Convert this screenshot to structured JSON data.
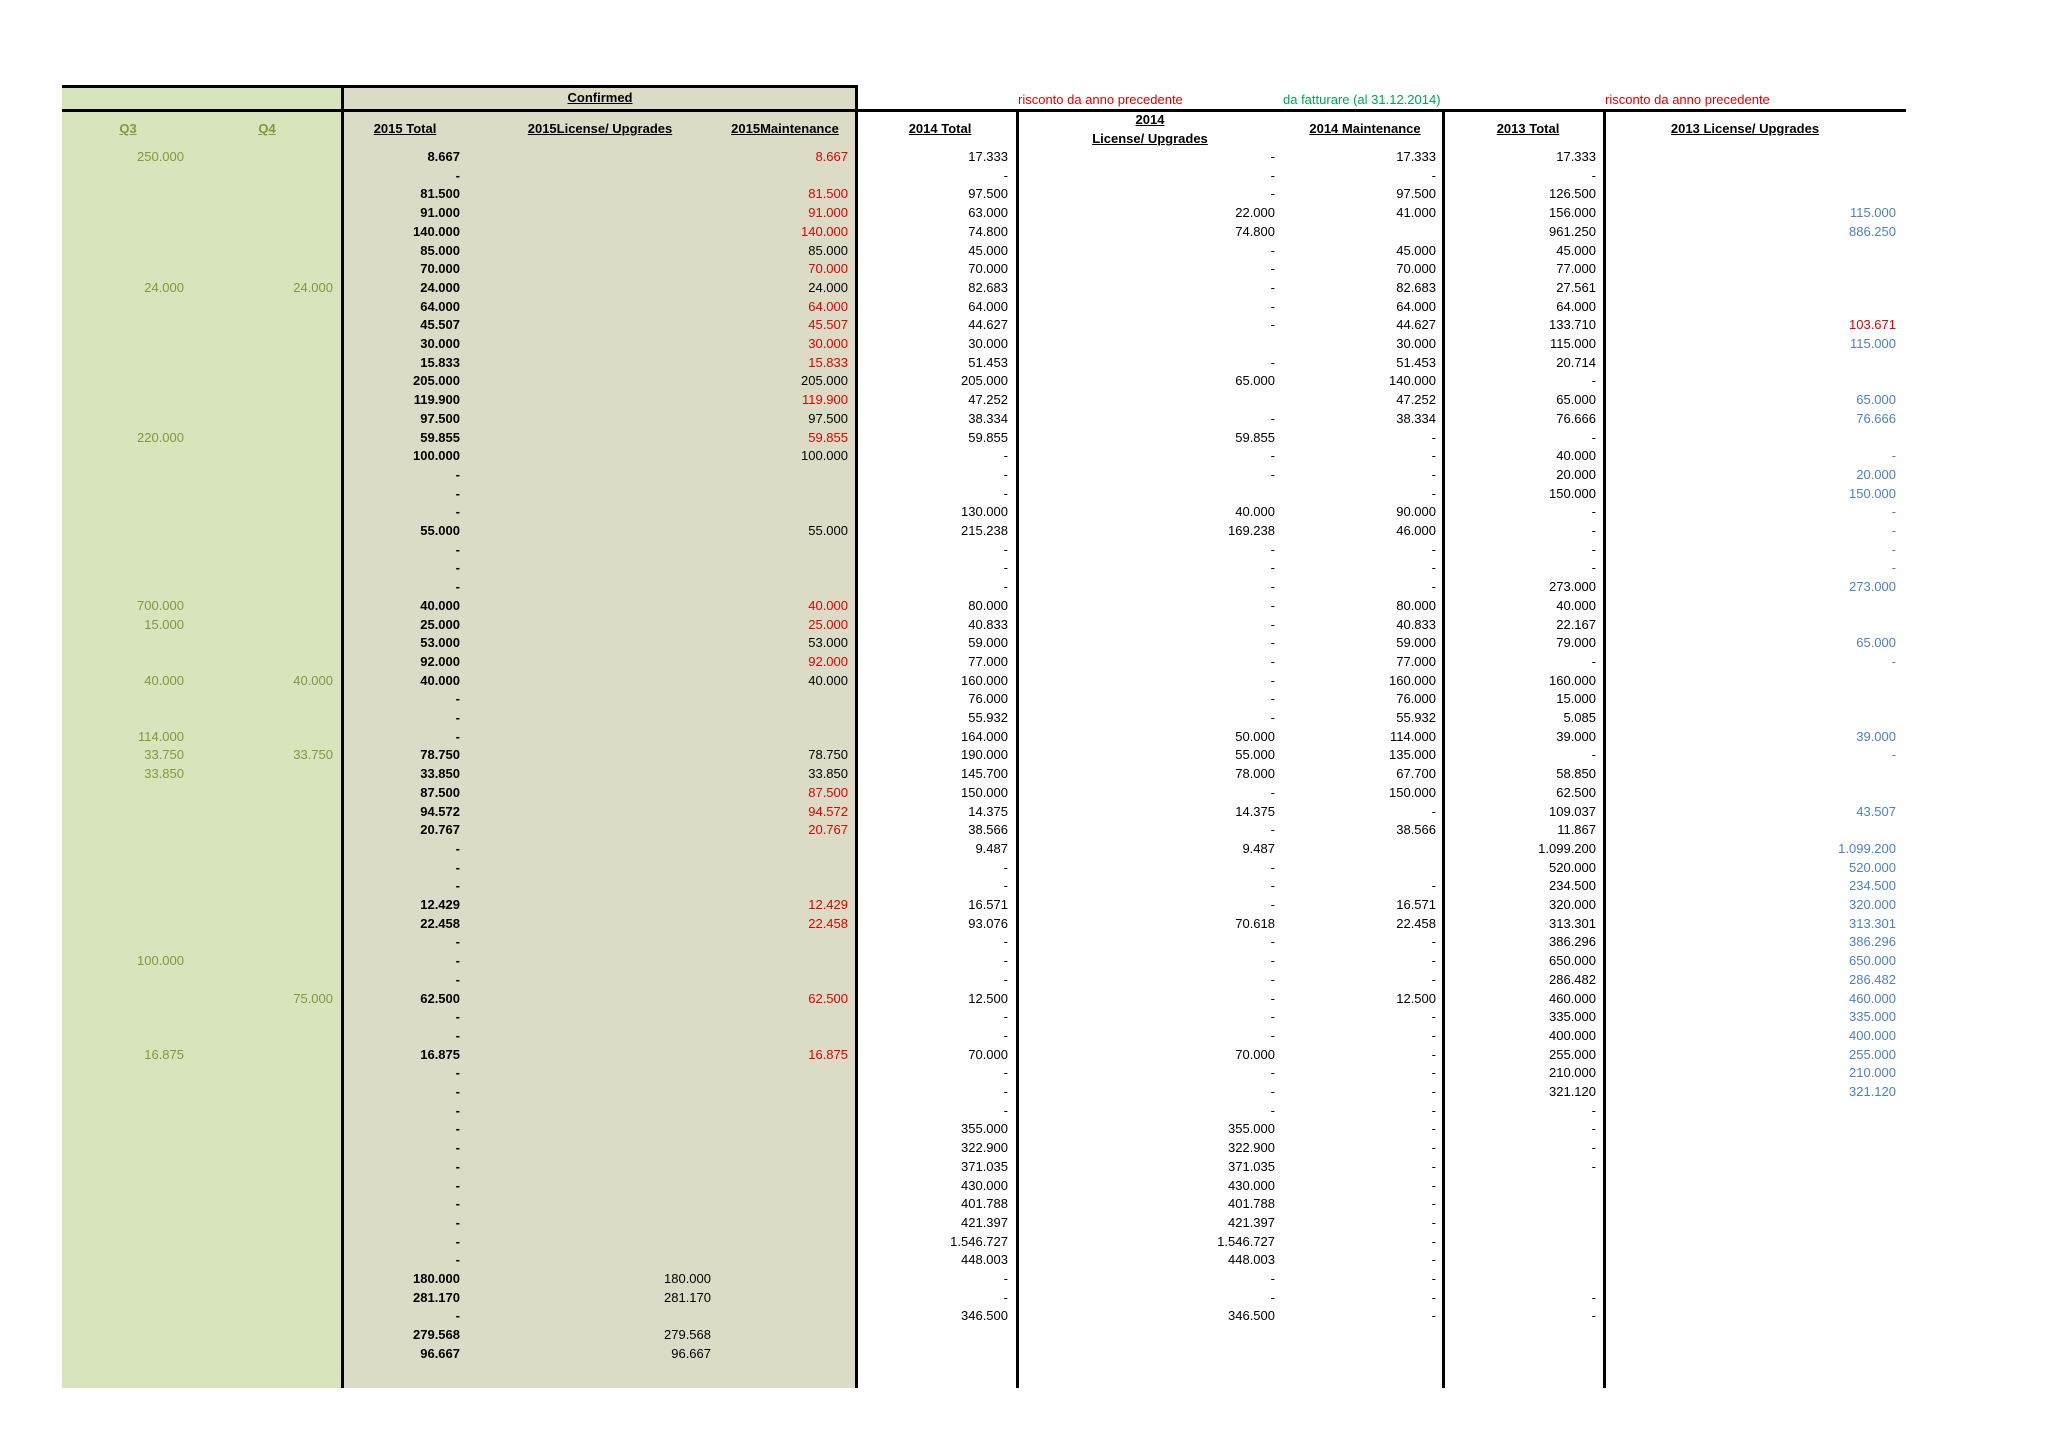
{
  "header": {
    "confirmed": "Confirmed",
    "note_risconto_1": "risconto da anno precedente",
    "note_fatturare": "da fatturare (al 31.12.2014)",
    "note_risconto_2": "risconto da anno precedente",
    "columns": {
      "q3": "Q3",
      "q4": "Q4",
      "t2015": "2015 Total",
      "l2015": "2015License/ Upgrades",
      "m2015": "2015Maintenance",
      "t2014": "2014 Total",
      "l2014_line1": "2014",
      "l2014_line2": "License/ Upgrades",
      "m2014": "2014 Maintenance",
      "t2013": "2013 Total",
      "l2013": "2013 License/ Upgrades"
    }
  },
  "colors": {
    "green_bg": "#d8e4bc",
    "grey_bg": "#dcdcc6",
    "q_text": "#7f9a3a",
    "red": "#e00000",
    "blue": "#4f81bd",
    "green_note": "#00a651"
  },
  "rows": [
    {
      "q3": "250.000",
      "t2015": "8.667",
      "m2015": "8.667",
      "m2015c": "red",
      "t2014": "17.333",
      "l2014": "-",
      "m2014": "17.333",
      "t2013": "17.333"
    },
    {
      "t2015": "-",
      "t2014": "-",
      "l2014": "-",
      "m2014": "-",
      "t2013": "-"
    },
    {
      "t2015": "81.500",
      "m2015": "81.500",
      "m2015c": "red",
      "t2014": "97.500",
      "l2014": "-",
      "m2014": "97.500",
      "t2013": "126.500"
    },
    {
      "t2015": "91.000",
      "m2015": "91.000",
      "m2015c": "red",
      "t2014": "63.000",
      "l2014": "22.000",
      "m2014": "41.000",
      "t2013": "156.000",
      "l2013": "115.000",
      "l2013c": "blue"
    },
    {
      "t2015": "140.000",
      "m2015": "140.000",
      "m2015c": "red",
      "t2014": "74.800",
      "l2014": "74.800",
      "t2013": "961.250",
      "l2013": "886.250",
      "l2013c": "blue"
    },
    {
      "t2015": "85.000",
      "m2015": "85.000",
      "t2014": "45.000",
      "l2014": "-",
      "m2014": "45.000",
      "t2013": "45.000"
    },
    {
      "t2015": "70.000",
      "m2015": "70.000",
      "m2015c": "red",
      "t2014": "70.000",
      "l2014": "-",
      "m2014": "70.000",
      "t2013": "77.000"
    },
    {
      "q3": "24.000",
      "q4": "24.000",
      "t2015": "24.000",
      "m2015": "24.000",
      "t2014": "82.683",
      "l2014": "-",
      "m2014": "82.683",
      "t2013": "27.561"
    },
    {
      "t2015": "64.000",
      "m2015": "64.000",
      "m2015c": "red",
      "t2014": "64.000",
      "l2014": "-",
      "m2014": "64.000",
      "t2013": "64.000"
    },
    {
      "t2015": "45.507",
      "m2015": "45.507",
      "m2015c": "red",
      "t2014": "44.627",
      "l2014": "-",
      "m2014": "44.627",
      "t2013": "133.710",
      "l2013": "103.671",
      "l2013c": "red"
    },
    {
      "t2015": "30.000",
      "m2015": "30.000",
      "m2015c": "red",
      "t2014": "30.000",
      "m2014": "30.000",
      "t2013": "115.000",
      "l2013": "115.000",
      "l2013c": "blue"
    },
    {
      "t2015": "15.833",
      "m2015": "15.833",
      "m2015c": "red",
      "t2014": "51.453",
      "l2014": "-",
      "m2014": "51.453",
      "t2013": "20.714"
    },
    {
      "t2015": "205.000",
      "m2015": "205.000",
      "t2014": "205.000",
      "l2014": "65.000",
      "m2014": "140.000",
      "t2013": "-"
    },
    {
      "t2015": "119.900",
      "m2015": "119.900",
      "m2015c": "red",
      "t2014": "47.252",
      "m2014": "47.252",
      "t2013": "65.000",
      "l2013": "65.000",
      "l2013c": "blue"
    },
    {
      "t2015": "97.500",
      "m2015": "97.500",
      "t2014": "38.334",
      "l2014": "-",
      "m2014": "38.334",
      "t2013": "76.666",
      "l2013": "76.666",
      "l2013c": "blue"
    },
    {
      "q3": "220.000",
      "t2015": "59.855",
      "m2015": "59.855",
      "m2015c": "red",
      "t2014": "59.855",
      "l2014": "59.855",
      "m2014": "-",
      "t2013": "-"
    },
    {
      "t2015": "100.000",
      "m2015": "100.000",
      "t2014": "-",
      "l2014": "-",
      "m2014": "-",
      "t2013": "40.000",
      "l2013": "-",
      "l2013c": "blue"
    },
    {
      "t2015": "-",
      "t2014": "-",
      "l2014": "-",
      "m2014": "-",
      "t2013": "20.000",
      "l2013": "20.000",
      "l2013c": "blue"
    },
    {
      "t2015": "-",
      "t2014": "-",
      "m2014": "-",
      "t2013": "150.000",
      "l2013": "150.000",
      "l2013c": "blue"
    },
    {
      "t2015": "-",
      "t2014": "130.000",
      "l2014": "40.000",
      "m2014": "90.000",
      "t2013": "-",
      "l2013": "-",
      "l2013c": "blue"
    },
    {
      "t2015": "55.000",
      "m2015": "55.000",
      "t2014": "215.238",
      "l2014": "169.238",
      "m2014": "46.000",
      "t2013": "-",
      "l2013": "-",
      "l2013c": "blue"
    },
    {
      "t2015": "-",
      "t2014": "-",
      "l2014": "-",
      "m2014": "-",
      "t2013": "-",
      "l2013": "-",
      "l2013c": "blue"
    },
    {
      "t2015": "-",
      "t2014": "-",
      "l2014": "-",
      "m2014": "-",
      "t2013": "-",
      "l2013": "-",
      "l2013c": "blue"
    },
    {
      "t2015": "-",
      "t2014": "-",
      "l2014": "-",
      "m2014": "-",
      "t2013": "273.000",
      "l2013": "273.000",
      "l2013c": "blue"
    },
    {
      "q3": "700.000",
      "t2015": "40.000",
      "m2015": "40.000",
      "m2015c": "red",
      "t2014": "80.000",
      "l2014": "-",
      "m2014": "80.000",
      "t2013": "40.000"
    },
    {
      "q3": "15.000",
      "t2015": "25.000",
      "m2015": "25.000",
      "m2015c": "red",
      "t2014": "40.833",
      "l2014": "-",
      "m2014": "40.833",
      "t2013": "22.167"
    },
    {
      "t2015": "53.000",
      "m2015": "53.000",
      "t2014": "59.000",
      "l2014": "-",
      "m2014": "59.000",
      "t2013": "79.000",
      "l2013": "65.000",
      "l2013c": "blue"
    },
    {
      "t2015": "92.000",
      "m2015": "92.000",
      "m2015c": "red",
      "t2014": "77.000",
      "l2014": "-",
      "m2014": "77.000",
      "t2013": "-",
      "l2013": "-",
      "l2013c": "blue"
    },
    {
      "q3": "40.000",
      "q4": "40.000",
      "t2015": "40.000",
      "m2015": "40.000",
      "t2014": "160.000",
      "l2014": "-",
      "m2014": "160.000",
      "t2013": "160.000"
    },
    {
      "t2015": "-",
      "t2014": "76.000",
      "l2014": "-",
      "m2014": "76.000",
      "t2013": "15.000"
    },
    {
      "t2015": "-",
      "t2014": "55.932",
      "l2014": "-",
      "m2014": "55.932",
      "t2013": "5.085"
    },
    {
      "q3": "114.000",
      "t2015": "-",
      "t2014": "164.000",
      "l2014": "50.000",
      "m2014": "114.000",
      "t2013": "39.000",
      "l2013": "39.000",
      "l2013c": "blue"
    },
    {
      "q3": "33.750",
      "q4": "33.750",
      "t2015": "78.750",
      "m2015": "78.750",
      "t2014": "190.000",
      "l2014": "55.000",
      "m2014": "135.000",
      "t2013": "-",
      "l2013": "-",
      "l2013c": "blue"
    },
    {
      "q3": "33.850",
      "t2015": "33.850",
      "m2015": "33.850",
      "t2014": "145.700",
      "l2014": "78.000",
      "m2014": "67.700",
      "t2013": "58.850"
    },
    {
      "t2015": "87.500",
      "m2015": "87.500",
      "m2015c": "red",
      "t2014": "150.000",
      "l2014": "-",
      "m2014": "150.000",
      "t2013": "62.500"
    },
    {
      "t2015": "94.572",
      "m2015": "94.572",
      "m2015c": "red",
      "t2014": "14.375",
      "l2014": "14.375",
      "m2014": "-",
      "t2013": "109.037",
      "l2013": "43.507",
      "l2013c": "blue"
    },
    {
      "t2015": "20.767",
      "m2015": "20.767",
      "m2015c": "red",
      "t2014": "38.566",
      "l2014": "-",
      "m2014": "38.566",
      "t2013": "11.867"
    },
    {
      "t2015": "-",
      "t2014": "9.487",
      "l2014": "9.487",
      "t2013": "1.099.200",
      "l2013": "1.099.200",
      "l2013c": "blue"
    },
    {
      "t2015": "-",
      "t2014": "-",
      "l2014": "-",
      "t2013": "520.000",
      "l2013": "520.000",
      "l2013c": "blue"
    },
    {
      "t2015": "-",
      "t2014": "-",
      "l2014": "-",
      "m2014": "-",
      "t2013": "234.500",
      "l2013": "234.500",
      "l2013c": "blue"
    },
    {
      "t2015": "12.429",
      "m2015": "12.429",
      "m2015c": "red",
      "t2014": "16.571",
      "l2014": "-",
      "m2014": "16.571",
      "t2013": "320.000",
      "l2013": "320.000",
      "l2013c": "blue"
    },
    {
      "t2015": "22.458",
      "m2015": "22.458",
      "m2015c": "red",
      "t2014": "93.076",
      "l2014": "70.618",
      "m2014": "22.458",
      "t2013": "313.301",
      "l2013": "313.301",
      "l2013c": "blue"
    },
    {
      "t2015": "-",
      "t2014": "-",
      "l2014": "-",
      "m2014": "-",
      "t2013": "386.296",
      "l2013": "386.296",
      "l2013c": "blue"
    },
    {
      "q3": "100.000",
      "t2015": "-",
      "t2014": "-",
      "l2014": "-",
      "m2014": "-",
      "t2013": "650.000",
      "l2013": "650.000",
      "l2013c": "blue"
    },
    {
      "t2015": "-",
      "t2014": "-",
      "l2014": "-",
      "m2014": "-",
      "t2013": "286.482",
      "l2013": "286.482",
      "l2013c": "blue"
    },
    {
      "q4": "75.000",
      "t2015": "62.500",
      "m2015": "62.500",
      "m2015c": "red",
      "t2014": "12.500",
      "l2014": "-",
      "m2014": "12.500",
      "t2013": "460.000",
      "l2013": "460.000",
      "l2013c": "blue"
    },
    {
      "t2015": "-",
      "t2014": "-",
      "l2014": "-",
      "m2014": "-",
      "t2013": "335.000",
      "l2013": "335.000",
      "l2013c": "blue"
    },
    {
      "t2015": "-",
      "t2014": "-",
      "l2014": "-",
      "m2014": "-",
      "t2013": "400.000",
      "l2013": "400.000",
      "l2013c": "blue"
    },
    {
      "q3": "16.875",
      "t2015": "16.875",
      "m2015": "16.875",
      "m2015c": "red",
      "t2014": "70.000",
      "l2014": "70.000",
      "m2014": "-",
      "t2013": "255.000",
      "l2013": "255.000",
      "l2013c": "blue"
    },
    {
      "t2015": "-",
      "t2014": "-",
      "l2014": "-",
      "m2014": "-",
      "t2013": "210.000",
      "l2013": "210.000",
      "l2013c": "blue"
    },
    {
      "t2015": "-",
      "t2014": "-",
      "l2014": "-",
      "m2014": "-",
      "t2013": "321.120",
      "l2013": "321.120",
      "l2013c": "blue"
    },
    {
      "t2015": "-",
      "t2014": "-",
      "l2014": "-",
      "m2014": "-",
      "t2013": "-"
    },
    {
      "t2015": "-",
      "t2014": "355.000",
      "l2014": "355.000",
      "m2014": "-",
      "t2013": "-"
    },
    {
      "t2015": "-",
      "t2014": "322.900",
      "l2014": "322.900",
      "m2014": "-",
      "t2013": "-"
    },
    {
      "t2015": "-",
      "t2014": "371.035",
      "l2014": "371.035",
      "m2014": "-",
      "t2013": "-"
    },
    {
      "t2015": "-",
      "t2014": "430.000",
      "l2014": "430.000",
      "m2014": "-"
    },
    {
      "t2015": "-",
      "t2014": "401.788",
      "l2014": "401.788",
      "m2014": "-"
    },
    {
      "t2015": "-",
      "t2014": "421.397",
      "l2014": "421.397",
      "m2014": "-"
    },
    {
      "t2015": "-",
      "t2014": "1.546.727",
      "l2014": "1.546.727",
      "m2014": "-"
    },
    {
      "t2015": "-",
      "t2014": "448.003",
      "l2014": "448.003",
      "m2014": "-"
    },
    {
      "t2015": "180.000",
      "l2015": "180.000",
      "t2014": "-",
      "l2014": "-",
      "m2014": "-"
    },
    {
      "t2015": "281.170",
      "l2015": "281.170",
      "t2014": "-",
      "l2014": "-",
      "m2014": "-",
      "t2013": "-"
    },
    {
      "t2015": "-",
      "t2014": "346.500",
      "l2014": "346.500",
      "m2014": "-",
      "t2013": "-"
    },
    {
      "t2015": "279.568",
      "l2015": "279.568"
    },
    {
      "t2015": "96.667",
      "l2015": "96.667"
    }
  ]
}
